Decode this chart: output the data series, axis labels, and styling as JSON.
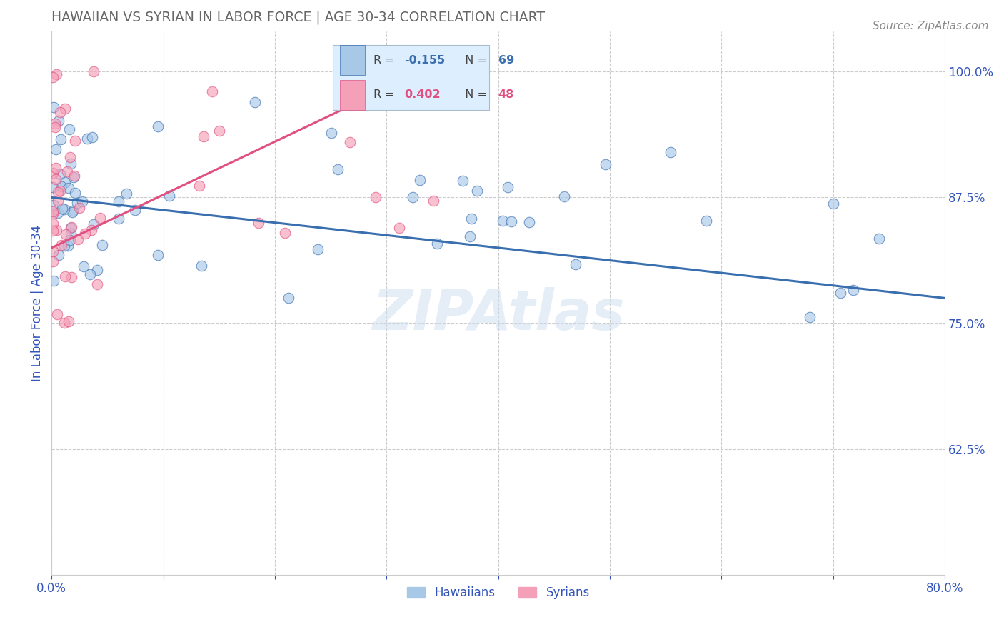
{
  "title": "HAWAIIAN VS SYRIAN IN LABOR FORCE | AGE 30-34 CORRELATION CHART",
  "source_text": "Source: ZipAtlas.com",
  "ylabel": "In Labor Force | Age 30-34",
  "watermark": "ZIPAtlas",
  "xlim": [
    0.0,
    0.8
  ],
  "ylim": [
    0.5,
    1.04
  ],
  "xticks": [
    0.0,
    0.1,
    0.2,
    0.3,
    0.4,
    0.5,
    0.6,
    0.7,
    0.8
  ],
  "xticklabels": [
    "0.0%",
    "",
    "",
    "",
    "",
    "",
    "",
    "",
    "80.0%"
  ],
  "ytick_positions": [
    0.625,
    0.75,
    0.875,
    1.0
  ],
  "ytick_labels": [
    "62.5%",
    "75.0%",
    "87.5%",
    "100.0%"
  ],
  "hawaiians_R": -0.155,
  "hawaiians_N": 69,
  "syrians_R": 0.402,
  "syrians_N": 48,
  "hawaiians_color": "#a8c8e8",
  "syrians_color": "#f4a0b8",
  "hawaiians_line_color": "#3a6faf",
  "syrians_line_color": "#e05080",
  "title_color": "#666666",
  "axis_label_color": "#3355bb",
  "tick_color": "#3355bb",
  "grid_color": "#cccccc",
  "hawaiians_line": [
    0.0,
    0.875,
    0.8,
    0.775
  ],
  "syrians_line": [
    0.0,
    0.825,
    0.37,
    1.02
  ]
}
